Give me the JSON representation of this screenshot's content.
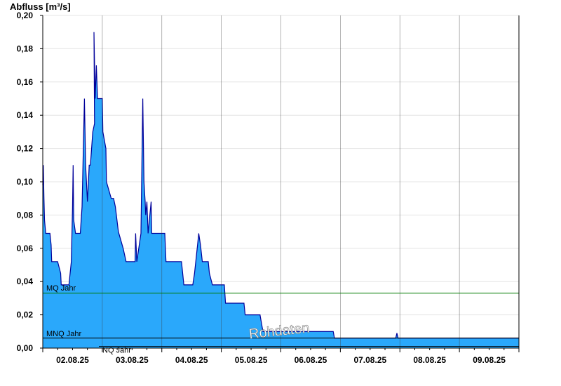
{
  "chart_data": {
    "type": "area",
    "ylabel": "Abfluss [m³/s]",
    "ylim": [
      0,
      0.2
    ],
    "yticks": [
      "0,00",
      "0,02",
      "0,04",
      "0,06",
      "0,08",
      "0,10",
      "0,12",
      "0,14",
      "0,16",
      "0,18",
      "0,20"
    ],
    "xlim": [
      0,
      8
    ],
    "xticks": [
      {
        "pos": 0.5,
        "label": "02.08.25"
      },
      {
        "pos": 1.5,
        "label": "03.08.25"
      },
      {
        "pos": 2.5,
        "label": "04.08.25"
      },
      {
        "pos": 3.5,
        "label": "05.08.25"
      },
      {
        "pos": 4.5,
        "label": "06.08.25"
      },
      {
        "pos": 5.5,
        "label": "07.08.25"
      },
      {
        "pos": 6.5,
        "label": "08.08.25"
      },
      {
        "pos": 7.5,
        "label": "09.08.25"
      }
    ],
    "day_boundaries": [
      1,
      2,
      3,
      4,
      5,
      6,
      7
    ],
    "grid": true,
    "fill_color": "#2aa8fb",
    "line_color": "#00009a",
    "series": [
      {
        "values": [
          [
            0.0,
            0.098
          ],
          [
            0.01,
            0.11
          ],
          [
            0.02,
            0.09
          ],
          [
            0.03,
            0.077
          ],
          [
            0.05,
            0.069
          ],
          [
            0.12,
            0.069
          ],
          [
            0.14,
            0.062
          ],
          [
            0.15,
            0.052
          ],
          [
            0.25,
            0.052
          ],
          [
            0.3,
            0.045
          ],
          [
            0.31,
            0.038
          ],
          [
            0.44,
            0.038
          ],
          [
            0.48,
            0.052
          ],
          [
            0.5,
            0.084
          ],
          [
            0.51,
            0.11
          ],
          [
            0.52,
            0.077
          ],
          [
            0.55,
            0.069
          ],
          [
            0.63,
            0.069
          ],
          [
            0.66,
            0.085
          ],
          [
            0.7,
            0.15
          ],
          [
            0.72,
            0.11
          ],
          [
            0.75,
            0.088
          ],
          [
            0.78,
            0.11
          ],
          [
            0.8,
            0.11
          ],
          [
            0.84,
            0.13
          ],
          [
            0.87,
            0.135
          ],
          [
            0.86,
            0.19
          ],
          [
            0.88,
            0.15
          ],
          [
            0.9,
            0.17
          ],
          [
            0.92,
            0.15
          ],
          [
            1.0,
            0.15
          ],
          [
            1.01,
            0.13
          ],
          [
            1.06,
            0.12
          ],
          [
            1.07,
            0.1
          ],
          [
            1.15,
            0.09
          ],
          [
            1.19,
            0.09
          ],
          [
            1.22,
            0.085
          ],
          [
            1.27,
            0.07
          ],
          [
            1.35,
            0.06
          ],
          [
            1.4,
            0.052
          ],
          [
            1.55,
            0.052
          ],
          [
            1.56,
            0.069
          ],
          [
            1.58,
            0.052
          ],
          [
            1.65,
            0.069
          ],
          [
            1.68,
            0.15
          ],
          [
            1.7,
            0.1
          ],
          [
            1.72,
            0.088
          ],
          [
            1.73,
            0.08
          ],
          [
            1.75,
            0.088
          ],
          [
            1.77,
            0.069
          ],
          [
            1.82,
            0.088
          ],
          [
            1.83,
            0.069
          ],
          [
            1.9,
            0.069
          ],
          [
            2.05,
            0.069
          ],
          [
            2.07,
            0.052
          ],
          [
            2.33,
            0.052
          ],
          [
            2.35,
            0.045
          ],
          [
            2.37,
            0.038
          ],
          [
            2.52,
            0.038
          ],
          [
            2.55,
            0.045
          ],
          [
            2.6,
            0.062
          ],
          [
            2.62,
            0.069
          ],
          [
            2.65,
            0.062
          ],
          [
            2.68,
            0.052
          ],
          [
            2.78,
            0.052
          ],
          [
            2.8,
            0.045
          ],
          [
            2.85,
            0.038
          ],
          [
            3.05,
            0.038
          ],
          [
            3.07,
            0.027
          ],
          [
            3.1,
            0.027
          ],
          [
            3.38,
            0.027
          ],
          [
            3.4,
            0.02
          ],
          [
            3.65,
            0.02
          ],
          [
            3.68,
            0.014
          ],
          [
            3.7,
            0.01
          ],
          [
            4.88,
            0.01
          ],
          [
            4.9,
            0.006
          ],
          [
            5.93,
            0.006
          ],
          [
            5.95,
            0.009
          ],
          [
            5.97,
            0.006
          ],
          [
            8.0,
            0.006
          ]
        ]
      }
    ],
    "references": [
      {
        "name": "MQ Jahr",
        "value": 0.033,
        "color": "#007a00"
      },
      {
        "name": "MNQ Jahr",
        "value": 0.006,
        "color": "#000000"
      },
      {
        "name": "NQ Jahr",
        "value": 0.001,
        "color": "#000000"
      }
    ],
    "watermark": "Rohdaten"
  }
}
